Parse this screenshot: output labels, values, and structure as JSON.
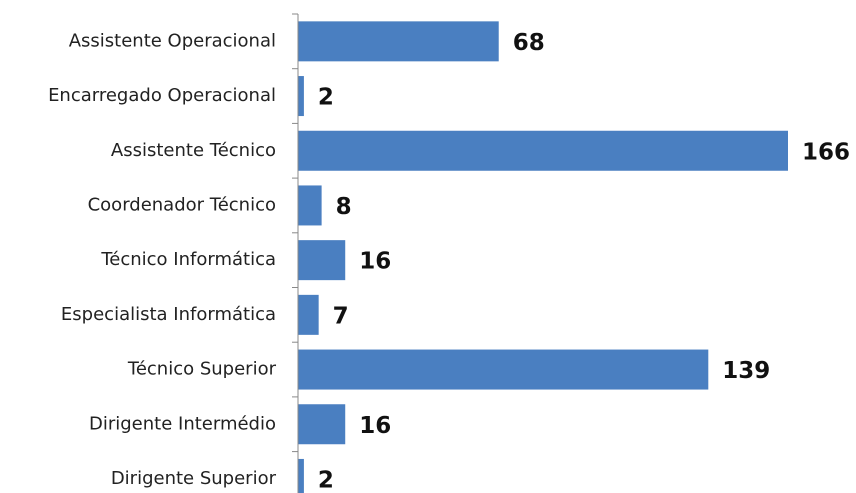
{
  "chart_data": {
    "type": "barh",
    "categories": [
      "Assistente Operacional",
      "Encarregado Operacional",
      "Assistente Técnico",
      "Coordenador Técnico",
      "Técnico Informática",
      "Especialista Informática",
      "Técnico Superior",
      "Dirigente Intermédio",
      "Dirigente Superior"
    ],
    "values": [
      68,
      2,
      166,
      8,
      16,
      7,
      139,
      16,
      2
    ],
    "color": "#4a7fc1"
  }
}
